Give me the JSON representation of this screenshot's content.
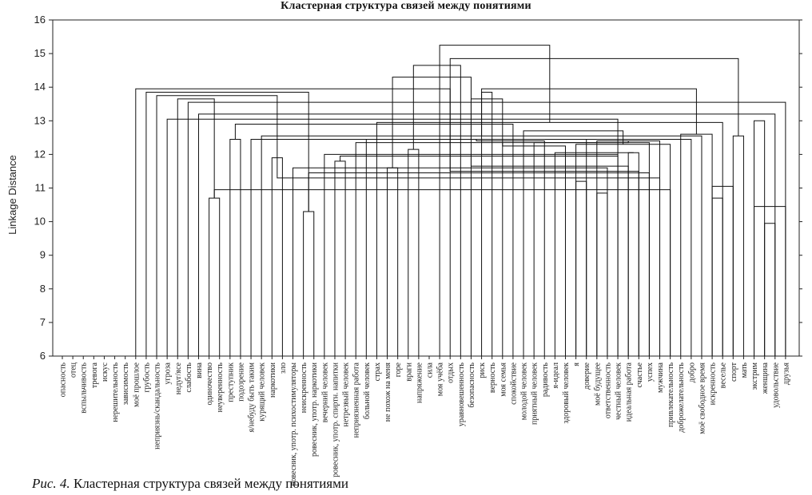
{
  "chart_data": {
    "type": "dendrogram",
    "title": "Кластерная структура связей между понятиями",
    "ylabel": "Linkage Distance",
    "ylim": [
      6,
      16
    ],
    "yticks": [
      6,
      7,
      8,
      9,
      10,
      11,
      12,
      13,
      14,
      15,
      16
    ],
    "grid": false,
    "leaves": [
      "опасность",
      "отец",
      "вспыльчивость",
      "тревога",
      "искус",
      "нерешительность",
      "зависимость",
      "моё прошлое",
      "грубость",
      "неприязнь/скандальность",
      "угроза",
      "недуг/ясе",
      "слабость",
      "вина",
      "одиночество",
      "неуверенность",
      "преступник",
      "подозрение",
      "я/небуду быть таким",
      "курящий человек",
      "наркотики",
      "зло",
      "ровесник, употр. психостимуляторы",
      "неискренность",
      "ровесник, употр. наркотики",
      "вечерний человек",
      "ровесник, употр. спиртн. напитки",
      "нетрезвый человек",
      "неприязненная работа",
      "больной человек",
      "страх",
      "не похож на меня",
      "горе",
      "враги",
      "напряжение",
      "сила",
      "моя учёба",
      "отдых",
      "уравновешенность",
      "безопасность",
      "риск",
      "верность",
      "моя семья",
      "спокойствие",
      "молодой человек",
      "приятный человек",
      "радивость",
      "я-идеал",
      "здоровый человек",
      "я",
      "доверие",
      "моё будущее",
      "ответственность",
      "честный человек",
      "идеальная работа",
      "счастье",
      "успех",
      "мужчина",
      "привлекательность",
      "доброжелательность",
      "добро",
      "моё свободное время",
      "искренность",
      "веселье",
      "спорт",
      "мать",
      "экстрим",
      "женщина",
      "удовольствие",
      "друзья"
    ],
    "merges": [
      [
        14,
        15,
        10.7
      ],
      [
        20,
        21,
        11.9
      ],
      [
        23,
        24,
        10.3
      ],
      [
        22,
        52,
        11.6
      ],
      [
        25,
        53,
        12.0
      ],
      [
        26,
        27,
        11.8
      ],
      [
        55,
        54,
        12.05
      ],
      [
        56,
        28,
        12.35
      ],
      [
        51,
        57,
        12.4
      ],
      [
        50,
        29,
        12.45
      ],
      [
        49,
        58,
        12.3
      ],
      [
        16,
        17,
        12.45
      ],
      [
        60,
        18,
        12.45
      ],
      [
        61,
        19,
        12.55
      ],
      [
        62,
        59,
        12.6
      ],
      [
        31,
        32,
        11.6
      ],
      [
        33,
        34,
        12.15
      ],
      [
        64,
        65,
        12.55
      ],
      [
        63,
        30,
        12.95
      ],
      [
        67,
        66,
        13.0
      ],
      [
        53,
        10,
        13.05
      ],
      [
        13,
        68,
        13.2
      ],
      [
        12,
        69,
        13.55
      ],
      [
        11,
        70,
        13.65
      ],
      [
        9,
        71,
        13.75
      ],
      [
        8,
        72,
        13.85
      ],
      [
        7,
        73,
        13.95
      ],
      [
        62,
        63,
        10.7
      ],
      [
        64,
        62,
        11.05
      ],
      [
        49,
        50,
        11.2
      ],
      [
        51,
        52,
        10.85
      ],
      [
        67,
        68,
        9.95
      ],
      [
        69,
        66,
        10.45
      ],
      [
        70,
        58,
        10.95
      ],
      [
        71,
        57,
        11.3
      ],
      [
        72,
        56,
        11.45
      ],
      [
        73,
        55,
        11.5
      ],
      [
        74,
        54,
        11.65
      ],
      [
        75,
        53,
        11.95
      ],
      [
        76,
        47,
        12.05
      ],
      [
        77,
        48,
        12.25
      ],
      [
        78,
        45,
        12.35
      ],
      [
        79,
        46,
        12.4
      ],
      [
        80,
        44,
        12.7
      ],
      [
        81,
        43,
        12.9
      ],
      [
        82,
        42,
        13.65
      ],
      [
        83,
        41,
        13.85
      ],
      [
        84,
        40,
        13.95
      ],
      [
        85,
        39,
        14.3
      ],
      [
        86,
        38,
        14.65
      ],
      [
        87,
        37,
        14.85
      ],
      [
        88,
        36,
        15.25
      ]
    ]
  }
}
